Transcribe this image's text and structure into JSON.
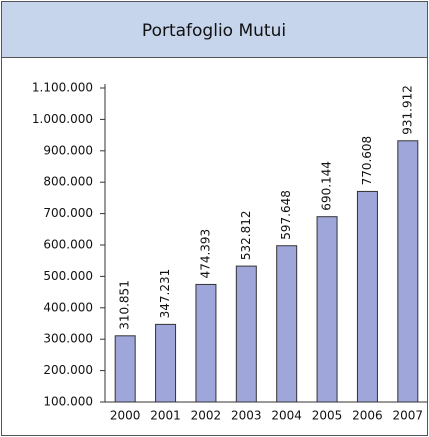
{
  "chart_data": {
    "type": "bar",
    "title": "Portafoglio Mutui",
    "categories": [
      "2000",
      "2001",
      "2002",
      "2003",
      "2004",
      "2005",
      "2006",
      "2007"
    ],
    "values": [
      310851,
      347231,
      474393,
      532812,
      597648,
      690144,
      770608,
      931912
    ],
    "value_labels": [
      "310.851",
      "347.231",
      "474.393",
      "532.812",
      "597.648",
      "690.144",
      "770.608",
      "931.912"
    ],
    "color": "#9ea6da",
    "ylim": [
      100000,
      1100000
    ],
    "yticks": [
      {
        "value": 100000,
        "label": "100.000"
      },
      {
        "value": 200000,
        "label": "200.000"
      },
      {
        "value": 300000,
        "label": "300.000"
      },
      {
        "value": 400000,
        "label": "400.000"
      },
      {
        "value": 500000,
        "label": "500.000"
      },
      {
        "value": 600000,
        "label": "600.000"
      },
      {
        "value": 700000,
        "label": "700.000"
      },
      {
        "value": 800000,
        "label": "800.000"
      },
      {
        "value": 900000,
        "label": "900.000"
      },
      {
        "value": 1000000,
        "label": "1.000.000"
      },
      {
        "value": 1100000,
        "label": "1.100.000"
      }
    ]
  }
}
